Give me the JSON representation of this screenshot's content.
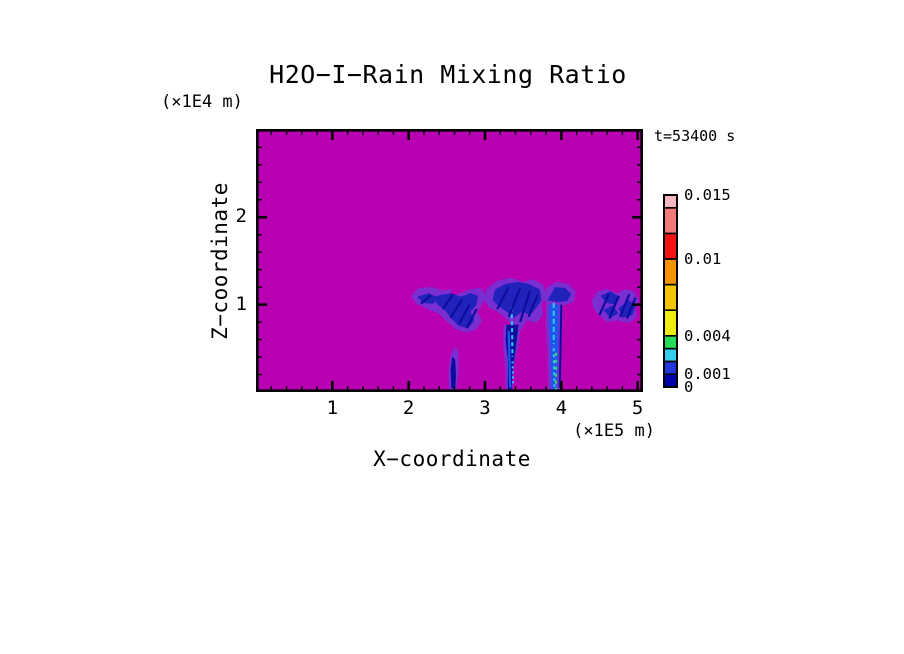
{
  "title": "H2O−I−Rain Mixing Ratio",
  "time_label": "t=53400 s",
  "axes": {
    "x": {
      "label": "X−coordinate",
      "unit": "(×1E5 m)",
      "range": [
        0,
        5.07
      ],
      "major_ticks": [
        1,
        2,
        3,
        4,
        5
      ],
      "minor_step": 0.2
    },
    "z": {
      "label": "Z−coordinate",
      "unit": "(×1E4 m)",
      "range": [
        0,
        3.01
      ],
      "major_ticks": [
        1,
        2
      ],
      "minor_step": 0.2
    }
  },
  "chart_data": {
    "type": "heatmap",
    "title": "H2O−I−Rain Mixing Ratio",
    "xlabel": "X−coordinate (×1E5 m)",
    "ylabel": "Z−coordinate (×1E4 m)",
    "xlim": [
      0,
      5.07
    ],
    "ylim": [
      0,
      3.01
    ],
    "time": "t=53400 s",
    "background_fill_value": 0,
    "colorbar": {
      "levels": [
        0,
        0.001,
        0.002,
        0.003,
        0.004,
        0.006,
        0.008,
        0.01,
        0.012,
        0.014,
        0.015
      ],
      "colors": [
        "#0000A8",
        "#2236DC",
        "#35CCEE",
        "#27DC58",
        "#EDED12",
        "#F3C402",
        "#F69102",
        "#F31414",
        "#F07A7A",
        "#F5B8C0"
      ],
      "labels": [
        {
          "text": "0.015",
          "value": 0.015
        },
        {
          "text": "0.01",
          "value": 0.01
        },
        {
          "text": "0.004",
          "value": 0.004
        },
        {
          "text": "0.001",
          "value": 0.001
        },
        {
          "text": "0",
          "value": 0
        }
      ]
    },
    "palette": {
      "magenta": "#B800B2",
      "fringe": "#7A2ED2",
      "darkblue": "#2121BC",
      "navy": "#0D0D9C",
      "brightblue": "#1E55EC",
      "cyan": "#2EC9F0",
      "green": "#2EDA62"
    },
    "features": [
      {
        "name": "left-anvil-fringe",
        "type": "poly",
        "color": "fringe",
        "pts": [
          [
            2.03,
            1.1
          ],
          [
            2.13,
            1.19
          ],
          [
            2.31,
            1.2
          ],
          [
            2.45,
            1.16
          ],
          [
            2.57,
            1.18
          ],
          [
            2.51,
            1.07
          ],
          [
            2.61,
            1.11
          ],
          [
            2.78,
            1.17
          ],
          [
            2.94,
            1.19
          ],
          [
            3.02,
            1.11
          ],
          [
            2.96,
            1.0
          ],
          [
            2.9,
            0.92
          ],
          [
            2.96,
            0.82
          ],
          [
            2.89,
            0.72
          ],
          [
            2.76,
            0.68
          ],
          [
            2.61,
            0.72
          ],
          [
            2.51,
            0.8
          ],
          [
            2.39,
            0.9
          ],
          [
            2.25,
            0.95
          ],
          [
            2.1,
            1.01
          ]
        ]
      },
      {
        "name": "left-anvil-core",
        "type": "poly",
        "color": "darkblue",
        "pts": [
          [
            2.41,
            1.11
          ],
          [
            2.57,
            1.13
          ],
          [
            2.68,
            1.09
          ],
          [
            2.81,
            1.13
          ],
          [
            2.91,
            1.1
          ],
          [
            2.89,
            1.0
          ],
          [
            2.81,
            0.92
          ],
          [
            2.86,
            0.82
          ],
          [
            2.78,
            0.73
          ],
          [
            2.65,
            0.76
          ],
          [
            2.55,
            0.85
          ],
          [
            2.47,
            0.94
          ],
          [
            2.38,
            1.0
          ],
          [
            2.32,
            1.08
          ]
        ]
      },
      {
        "name": "left-anvil-core2",
        "type": "poly",
        "color": "darkblue",
        "pts": [
          [
            2.11,
            1.09
          ],
          [
            2.26,
            1.13
          ],
          [
            2.39,
            1.08
          ],
          [
            2.32,
            1.01
          ],
          [
            2.19,
            1.02
          ]
        ]
      },
      {
        "name": "small-shaft-fringe",
        "type": "poly",
        "color": "fringe",
        "pts": [
          [
            2.53,
            0.02
          ],
          [
            2.52,
            0.22
          ],
          [
            2.55,
            0.42
          ],
          [
            2.6,
            0.52
          ],
          [
            2.65,
            0.46
          ],
          [
            2.66,
            0.27
          ],
          [
            2.64,
            0.11
          ],
          [
            2.62,
            0.0
          ],
          [
            2.53,
            0.0
          ]
        ]
      },
      {
        "name": "small-shaft-core",
        "type": "poly",
        "color": "navy",
        "pts": [
          [
            2.56,
            0.04
          ],
          [
            2.55,
            0.25
          ],
          [
            2.57,
            0.41
          ],
          [
            2.61,
            0.37
          ],
          [
            2.62,
            0.19
          ],
          [
            2.61,
            0.04
          ]
        ]
      },
      {
        "name": "central-anvil-fringe",
        "type": "poly",
        "color": "fringe",
        "pts": [
          [
            2.99,
            1.05
          ],
          [
            3.03,
            1.19
          ],
          [
            3.16,
            1.27
          ],
          [
            3.33,
            1.31
          ],
          [
            3.49,
            1.26
          ],
          [
            3.63,
            1.29
          ],
          [
            3.76,
            1.23
          ],
          [
            3.8,
            1.11
          ],
          [
            3.74,
            1.0
          ],
          [
            3.76,
            0.88
          ],
          [
            3.67,
            0.79
          ],
          [
            3.55,
            0.82
          ],
          [
            3.47,
            0.71
          ],
          [
            3.36,
            0.76
          ],
          [
            3.27,
            0.85
          ],
          [
            3.16,
            0.92
          ],
          [
            3.06,
            0.96
          ]
        ]
      },
      {
        "name": "central-anvil-core",
        "type": "poly",
        "color": "darkblue",
        "pts": [
          [
            3.1,
            1.05
          ],
          [
            3.13,
            1.17
          ],
          [
            3.27,
            1.24
          ],
          [
            3.44,
            1.26
          ],
          [
            3.59,
            1.23
          ],
          [
            3.72,
            1.17
          ],
          [
            3.74,
            1.05
          ],
          [
            3.67,
            0.96
          ],
          [
            3.59,
            0.88
          ],
          [
            3.49,
            0.92
          ],
          [
            3.38,
            0.85
          ],
          [
            3.28,
            0.92
          ],
          [
            3.17,
            0.99
          ]
        ]
      },
      {
        "name": "central-shaft-fringe",
        "type": "poly",
        "color": "fringe",
        "pts": [
          [
            3.24,
            0.77
          ],
          [
            3.47,
            0.77
          ],
          [
            3.44,
            0.54
          ],
          [
            3.38,
            0.31
          ],
          [
            3.36,
            0.08
          ],
          [
            3.36,
            0.0
          ],
          [
            3.27,
            0.0
          ],
          [
            3.27,
            0.25
          ],
          [
            3.24,
            0.5
          ]
        ]
      },
      {
        "name": "central-shaft-core",
        "type": "poly",
        "color": "navy",
        "pts": [
          [
            3.28,
            0.77
          ],
          [
            3.44,
            0.77
          ],
          [
            3.4,
            0.48
          ],
          [
            3.36,
            0.23
          ],
          [
            3.35,
            0.03
          ],
          [
            3.3,
            0.03
          ],
          [
            3.3,
            0.37
          ],
          [
            3.27,
            0.6
          ]
        ]
      },
      {
        "name": "right-shaft-cap-fringe",
        "type": "poly",
        "color": "fringe",
        "pts": [
          [
            3.76,
            1.05
          ],
          [
            3.8,
            1.19
          ],
          [
            3.93,
            1.26
          ],
          [
            4.09,
            1.24
          ],
          [
            4.19,
            1.15
          ],
          [
            4.16,
            1.03
          ],
          [
            4.02,
            0.99
          ],
          [
            3.89,
            1.0
          ]
        ]
      },
      {
        "name": "right-shaft-cap-core",
        "type": "poly",
        "color": "darkblue",
        "pts": [
          [
            3.82,
            1.05
          ],
          [
            3.92,
            1.2
          ],
          [
            4.05,
            1.19
          ],
          [
            4.13,
            1.12
          ],
          [
            4.08,
            1.04
          ],
          [
            3.95,
            1.03
          ]
        ]
      },
      {
        "name": "right-shaft-fringe",
        "type": "poly",
        "color": "fringe",
        "pts": [
          [
            3.8,
            1.03
          ],
          [
            4.02,
            1.03
          ],
          [
            4.01,
            0.71
          ],
          [
            4.0,
            0.37
          ],
          [
            3.99,
            0.0
          ],
          [
            3.83,
            0.0
          ],
          [
            3.82,
            0.42
          ],
          [
            3.8,
            0.77
          ]
        ]
      },
      {
        "name": "right-shaft-core",
        "type": "poly",
        "color": "brightblue",
        "pts": [
          [
            3.84,
            1.0
          ],
          [
            3.97,
            1.0
          ],
          [
            3.96,
            0.6
          ],
          [
            3.95,
            0.25
          ],
          [
            3.93,
            0.03
          ],
          [
            3.87,
            0.03
          ],
          [
            3.86,
            0.48
          ],
          [
            3.84,
            0.8
          ]
        ]
      },
      {
        "name": "right-anvil-fringe",
        "type": "poly",
        "color": "fringe",
        "pts": [
          [
            4.4,
            1.05
          ],
          [
            4.47,
            1.15
          ],
          [
            4.6,
            1.18
          ],
          [
            4.73,
            1.13
          ],
          [
            4.84,
            1.18
          ],
          [
            4.95,
            1.15
          ],
          [
            5.02,
            1.05
          ],
          [
            4.97,
            0.95
          ],
          [
            4.99,
            0.86
          ],
          [
            4.88,
            0.79
          ],
          [
            4.73,
            0.82
          ],
          [
            4.6,
            0.8
          ],
          [
            4.48,
            0.89
          ],
          [
            4.42,
            0.96
          ]
        ]
      },
      {
        "name": "right-anvil-core1",
        "type": "poly",
        "color": "darkblue",
        "pts": [
          [
            4.51,
            1.1
          ],
          [
            4.64,
            1.15
          ],
          [
            4.77,
            1.09
          ],
          [
            4.72,
            1.0
          ],
          [
            4.59,
            1.02
          ]
        ]
      },
      {
        "name": "right-anvil-core2",
        "type": "poly",
        "color": "darkblue",
        "pts": [
          [
            4.75,
            0.96
          ],
          [
            4.88,
            1.05
          ],
          [
            4.98,
            1.0
          ],
          [
            4.93,
            0.88
          ],
          [
            4.8,
            0.85
          ]
        ]
      },
      {
        "name": "right-anvil-core3",
        "type": "poly",
        "color": "darkblue",
        "pts": [
          [
            4.55,
            0.94
          ],
          [
            4.67,
            0.99
          ],
          [
            4.75,
            0.9
          ],
          [
            4.64,
            0.85
          ]
        ]
      },
      {
        "name": "central-shaft-edge-streak",
        "type": "seg",
        "color": "brightblue",
        "from": [
          3.31,
          0.7
        ],
        "to": [
          3.33,
          0.05
        ],
        "w": 2.2
      },
      {
        "name": "central-shaft-cyan-streak1",
        "type": "seg",
        "color": "cyan",
        "from": [
          3.35,
          0.97
        ],
        "to": [
          3.36,
          0.4
        ],
        "w": 2,
        "dash": "4,3"
      },
      {
        "name": "central-shaft-cyan-streak2",
        "type": "seg",
        "color": "cyan",
        "from": [
          3.36,
          0.35
        ],
        "to": [
          3.37,
          0.1
        ],
        "w": 2,
        "dash": "2,3"
      },
      {
        "name": "right-shaft-navy-edge",
        "type": "seg",
        "color": "navy",
        "from": [
          4.0,
          1.0
        ],
        "to": [
          3.98,
          0.05
        ],
        "w": 2
      },
      {
        "name": "right-shaft-cyan-streak1",
        "type": "seg",
        "color": "cyan",
        "from": [
          3.9,
          1.02
        ],
        "to": [
          3.9,
          0.55
        ],
        "w": 2,
        "dash": "5,3"
      },
      {
        "name": "right-shaft-cyan-streak2",
        "type": "seg",
        "color": "cyan",
        "from": [
          3.9,
          0.5
        ],
        "to": [
          3.91,
          0.06
        ],
        "w": 2,
        "dash": "3,3"
      },
      {
        "name": "right-shaft-green-streak",
        "type": "seg",
        "color": "green",
        "from": [
          3.93,
          0.45
        ],
        "to": [
          3.93,
          0.02
        ],
        "w": 2,
        "dash": "3,4"
      },
      {
        "name": "texture",
        "type": "seg",
        "color": "navy",
        "from": [
          2.45,
          0.95
        ],
        "to": [
          2.58,
          1.12
        ],
        "w": 2.2
      },
      {
        "name": "texture",
        "type": "seg",
        "color": "navy",
        "from": [
          2.55,
          0.85
        ],
        "to": [
          2.7,
          1.06
        ],
        "w": 2.2
      },
      {
        "name": "texture",
        "type": "seg",
        "color": "navy",
        "from": [
          2.66,
          0.78
        ],
        "to": [
          2.8,
          1.0
        ],
        "w": 2.2
      },
      {
        "name": "texture",
        "type": "seg",
        "color": "navy",
        "from": [
          2.76,
          0.73
        ],
        "to": [
          2.89,
          0.95
        ],
        "w": 2.2
      },
      {
        "name": "texture",
        "type": "seg",
        "color": "navy",
        "from": [
          2.16,
          1.01
        ],
        "to": [
          2.29,
          1.11
        ],
        "w": 2.2
      },
      {
        "name": "texture",
        "type": "seg",
        "color": "navy",
        "from": [
          3.16,
          0.95
        ],
        "to": [
          3.31,
          1.2
        ],
        "w": 2.2
      },
      {
        "name": "texture",
        "type": "seg",
        "color": "navy",
        "from": [
          3.31,
          0.86
        ],
        "to": [
          3.46,
          1.19
        ],
        "w": 2.2
      },
      {
        "name": "texture",
        "type": "seg",
        "color": "navy",
        "from": [
          3.46,
          0.8
        ],
        "to": [
          3.59,
          1.16
        ],
        "w": 2.2
      },
      {
        "name": "texture",
        "type": "seg",
        "color": "navy",
        "from": [
          3.57,
          0.86
        ],
        "to": [
          3.69,
          1.11
        ],
        "w": 2.2
      },
      {
        "name": "texture",
        "type": "seg",
        "color": "navy",
        "from": [
          4.5,
          0.88
        ],
        "to": [
          4.62,
          1.12
        ],
        "w": 2.2
      },
      {
        "name": "texture",
        "type": "seg",
        "color": "navy",
        "from": [
          4.63,
          0.84
        ],
        "to": [
          4.75,
          1.1
        ],
        "w": 2.2
      },
      {
        "name": "texture",
        "type": "seg",
        "color": "navy",
        "from": [
          4.77,
          0.86
        ],
        "to": [
          4.89,
          1.12
        ],
        "w": 2.2
      },
      {
        "name": "texture",
        "type": "seg",
        "color": "navy",
        "from": [
          4.86,
          0.84
        ],
        "to": [
          4.97,
          1.08
        ],
        "w": 2.2
      }
    ]
  }
}
